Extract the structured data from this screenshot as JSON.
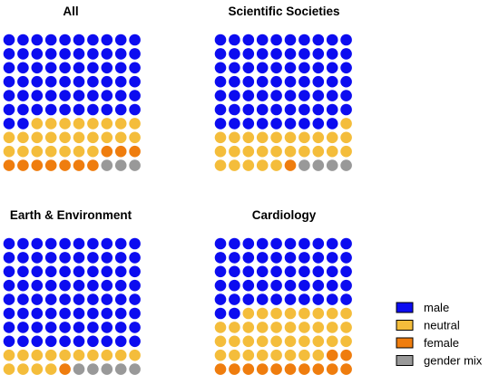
{
  "chart_data": {
    "type": "waffle",
    "grid": {
      "rows": 10,
      "cols": 10
    },
    "fill_order": "row-major from top-left: male, neutral, female, gender mix",
    "colors": {
      "male": "#0c0cf0",
      "neutral": "#f4bd3b",
      "female": "#ef7d0e",
      "gender mix": "#999999"
    },
    "legend": {
      "placement": "bottom-right",
      "entries": [
        {
          "key": "male",
          "label": "male"
        },
        {
          "key": "neutral",
          "label": "neutral"
        },
        {
          "key": "female",
          "label": "female"
        },
        {
          "key": "gender mix",
          "label": "gender mix"
        }
      ]
    },
    "panels": [
      {
        "title": "All",
        "counts": {
          "male": 62,
          "neutral": 25,
          "female": 10,
          "gender mix": 3
        }
      },
      {
        "title": "Scientific Societies",
        "counts": {
          "male": 69,
          "neutral": 26,
          "female": 1,
          "gender mix": 4
        }
      },
      {
        "title": "Earth & Environment",
        "counts": {
          "male": 80,
          "neutral": 14,
          "female": 1,
          "gender mix": 5
        }
      },
      {
        "title": "Cardiology",
        "counts": {
          "male": 52,
          "neutral": 36,
          "female": 12,
          "gender mix": 0
        }
      }
    ]
  }
}
